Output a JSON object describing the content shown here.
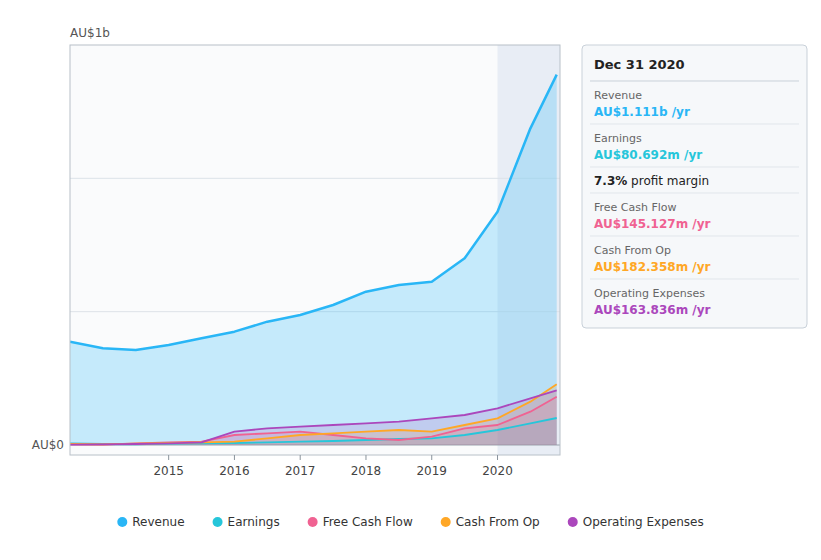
{
  "chart_data": {
    "type": "area",
    "x": [
      2013.5,
      2014.0,
      2014.5,
      2015.0,
      2015.5,
      2016.0,
      2016.5,
      2017.0,
      2017.5,
      2018.0,
      2018.5,
      2019.0,
      2019.5,
      2020.0,
      2020.5,
      2020.9
    ],
    "series": [
      {
        "name": "Revenue",
        "color": "#29b6f6",
        "values": [
          310,
          290,
          285,
          300,
          320,
          340,
          370,
          390,
          420,
          460,
          480,
          490,
          560,
          700,
          950,
          1111
        ]
      },
      {
        "name": "Earnings",
        "color": "#26c6da",
        "values": [
          5,
          3,
          2,
          4,
          5,
          6,
          8,
          10,
          12,
          15,
          18,
          20,
          30,
          45,
          65,
          81
        ]
      },
      {
        "name": "Free Cash Flow",
        "color": "#f06292",
        "values": [
          2,
          1,
          5,
          8,
          10,
          30,
          35,
          40,
          30,
          20,
          15,
          25,
          50,
          60,
          100,
          145
        ]
      },
      {
        "name": "Cash From Op",
        "color": "#ffa726",
        "values": [
          3,
          2,
          4,
          6,
          8,
          10,
          20,
          30,
          35,
          40,
          45,
          40,
          60,
          80,
          130,
          182
        ]
      },
      {
        "name": "Operating Expenses",
        "color": "#ab47bc",
        "values": [
          1,
          2,
          3,
          5,
          8,
          40,
          50,
          55,
          60,
          65,
          70,
          80,
          90,
          110,
          140,
          164
        ]
      }
    ],
    "xlim": [
      2013.5,
      2020.95
    ],
    "xticks": [
      2015,
      2016,
      2017,
      2018,
      2019,
      2020
    ],
    "ylim": [
      -30,
      1200
    ],
    "yticks": [
      0,
      400,
      800
    ],
    "grid": true,
    "tick_labels": "x",
    "legend": "bottom",
    "shaded_x_from": 2020.0,
    "annotations": [
      {
        "text": "AU$1b"
      },
      {
        "text": "AU$0"
      }
    ],
    "info_box": {
      "title": "Dec 31 2020",
      "rows": [
        {
          "label": "Revenue",
          "value": "AU$1.111b /yr",
          "color": "#29b6f6"
        },
        {
          "label": "Earnings",
          "value": "AU$80.692m /yr",
          "color": "#26c6da"
        },
        {
          "value": "7.3%",
          "suffix": " profit margin"
        },
        {
          "label": "Free Cash Flow",
          "value": "AU$145.127m /yr",
          "color": "#f06292"
        },
        {
          "label": "Cash From Op",
          "value": "AU$182.358m /yr",
          "color": "#ffa726"
        },
        {
          "label": "Operating Expenses",
          "value": "AU$163.836m /yr",
          "color": "#ab47bc"
        }
      ]
    }
  }
}
